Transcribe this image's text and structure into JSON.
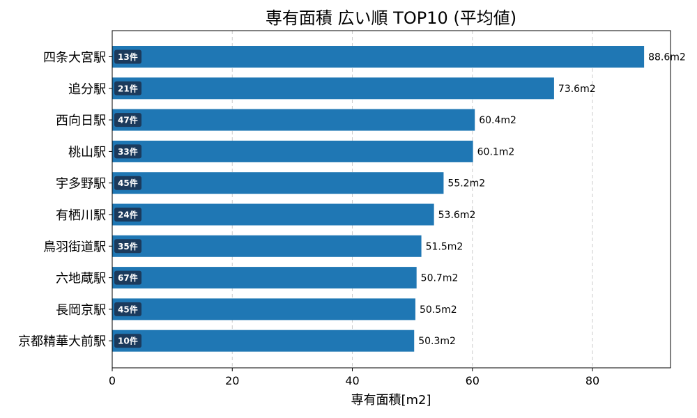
{
  "chart_data": {
    "type": "bar",
    "orientation": "horizontal",
    "title": "専有面積 広い順 TOP10 (平均値)",
    "xlabel": "専有面積[m2]",
    "ylabel": "",
    "xlim": [
      0,
      93
    ],
    "xticks": [
      0,
      20,
      40,
      60,
      80
    ],
    "grid": "x-dashed",
    "categories": [
      "四条大宮駅",
      "追分駅",
      "西向日駅",
      "桃山駅",
      "宇多野駅",
      "有栖川駅",
      "鳥羽街道駅",
      "六地蔵駅",
      "長岡京駅",
      "京都精華大前駅"
    ],
    "values": [
      88.6,
      73.6,
      60.4,
      60.1,
      55.2,
      53.6,
      51.5,
      50.7,
      50.5,
      50.3
    ],
    "value_labels": [
      "88.6m2",
      "73.6m2",
      "60.4m2",
      "60.1m2",
      "55.2m2",
      "53.6m2",
      "51.5m2",
      "50.7m2",
      "50.5m2",
      "50.3m2"
    ],
    "count_labels": [
      "13件",
      "21件",
      "47件",
      "33件",
      "45件",
      "24件",
      "35件",
      "67件",
      "45件",
      "10件"
    ],
    "colors": {
      "bar": "#1f77b4",
      "badge": "#1b3a5c",
      "grid": "#cccccc"
    }
  }
}
